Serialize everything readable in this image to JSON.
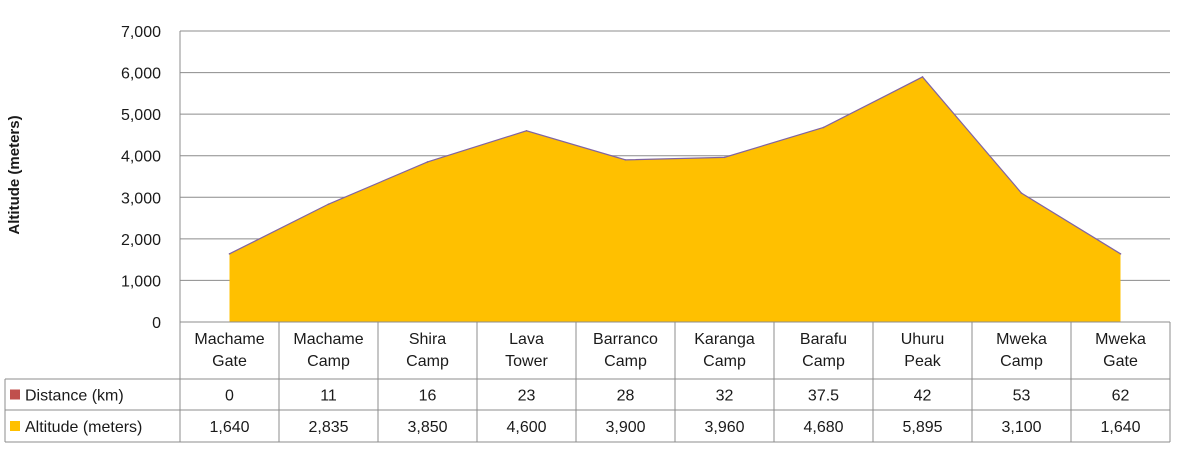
{
  "chart_data": {
    "type": "area",
    "categories": [
      [
        "Machame",
        "Gate"
      ],
      [
        "Machame",
        "Camp"
      ],
      [
        "Shira",
        "Camp"
      ],
      [
        "Lava",
        "Tower"
      ],
      [
        "Barranco",
        "Camp"
      ],
      [
        "Karanga",
        "Camp"
      ],
      [
        "Barafu",
        "Camp"
      ],
      [
        "Uhuru",
        "Peak"
      ],
      [
        "Mweka",
        "Camp"
      ],
      [
        "Mweka",
        "Gate"
      ]
    ],
    "ylabel": "Altitude (meters)",
    "ylim": [
      0,
      7000
    ],
    "yticks": [
      "0",
      "1,000",
      "2,000",
      "3,000",
      "4,000",
      "5,000",
      "6,000",
      "7,000"
    ],
    "grid": true,
    "legend_position": "data-table",
    "series": [
      {
        "name": "Distance (km)",
        "color": "#c0504d",
        "values": [
          0,
          11,
          16,
          23,
          28,
          32,
          37.5,
          42,
          53,
          62
        ],
        "labels": [
          "0",
          "11",
          "16",
          "23",
          "28",
          "32",
          "37.5",
          "42",
          "53",
          "62"
        ]
      },
      {
        "name": "Altitude (meters)",
        "color": "#ffc000",
        "edge_color": "#8064a2",
        "values": [
          1640,
          2835,
          3850,
          4600,
          3900,
          3960,
          4680,
          5895,
          3100,
          1640
        ],
        "labels": [
          "1,640",
          "2,835",
          "3,850",
          "4,600",
          "3,900",
          "3,960",
          "4,680",
          "5,895",
          "3,100",
          "1,640"
        ]
      }
    ]
  }
}
